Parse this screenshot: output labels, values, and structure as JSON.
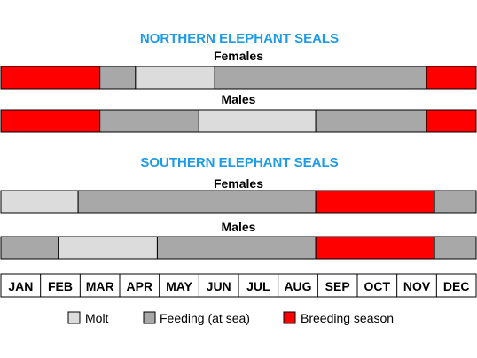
{
  "chart_data": {
    "type": "timeline",
    "months": [
      "JAN",
      "FEB",
      "MAR",
      "APR",
      "MAY",
      "JUN",
      "JUL",
      "AUG",
      "SEP",
      "OCT",
      "NOV",
      "DEC"
    ],
    "colors": {
      "molt": "#dcdcdc",
      "feeding": "#a8a8a8",
      "breeding": "#ff0000"
    },
    "legend": [
      {
        "key": "molt",
        "label": "Molt"
      },
      {
        "key": "feeding",
        "label": "Feeding (at sea)"
      },
      {
        "key": "breeding",
        "label": "Breeding season"
      }
    ],
    "sections": [
      {
        "title": "NORTHERN ELEPHANT SEALS",
        "groups": [
          {
            "label": "Females",
            "segments": [
              {
                "phase": "breeding",
                "start": 0.0,
                "end": 2.5
              },
              {
                "phase": "feeding",
                "start": 2.5,
                "end": 3.4
              },
              {
                "phase": "molt",
                "start": 3.4,
                "end": 5.4
              },
              {
                "phase": "feeding",
                "start": 5.4,
                "end": 10.75
              },
              {
                "phase": "breeding",
                "start": 10.75,
                "end": 12.0
              }
            ]
          },
          {
            "label": "Males",
            "segments": [
              {
                "phase": "breeding",
                "start": 0.0,
                "end": 2.5
              },
              {
                "phase": "feeding",
                "start": 2.5,
                "end": 5.0
              },
              {
                "phase": "molt",
                "start": 5.0,
                "end": 7.95
              },
              {
                "phase": "feeding",
                "start": 7.95,
                "end": 10.75
              },
              {
                "phase": "breeding",
                "start": 10.75,
                "end": 12.0
              }
            ]
          }
        ]
      },
      {
        "title": "SOUTHERN ELEPHANT SEALS",
        "groups": [
          {
            "label": "Females",
            "segments": [
              {
                "phase": "molt",
                "start": 0.0,
                "end": 1.95
              },
              {
                "phase": "feeding",
                "start": 1.95,
                "end": 7.95
              },
              {
                "phase": "breeding",
                "start": 7.95,
                "end": 10.95
              },
              {
                "phase": "feeding",
                "start": 10.95,
                "end": 12.0
              }
            ]
          },
          {
            "label": "Males",
            "segments": [
              {
                "phase": "feeding",
                "start": 0.0,
                "end": 1.45
              },
              {
                "phase": "molt",
                "start": 1.45,
                "end": 3.95
              },
              {
                "phase": "feeding",
                "start": 3.95,
                "end": 7.95
              },
              {
                "phase": "breeding",
                "start": 7.95,
                "end": 10.95
              },
              {
                "phase": "feeding",
                "start": 10.95,
                "end": 12.0
              }
            ]
          }
        ]
      }
    ]
  }
}
